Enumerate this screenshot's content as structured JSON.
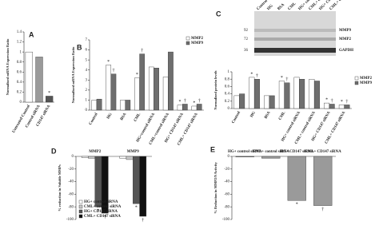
{
  "chart_data": [
    {
      "type": "bar",
      "panel": "A",
      "ylabel": "Normalized mRNA Expression Ratio",
      "categories": [
        "Untreated Control",
        "Control siRNA",
        "CD147 siRNA"
      ],
      "values": [
        1.0,
        0.9,
        0.12
      ],
      "colors": [
        "#ffffff",
        "#9a9a9a",
        "#555555"
      ],
      "annotations": [
        null,
        null,
        "*"
      ],
      "ylim": [
        0,
        1.4
      ],
      "yticks": [
        0,
        0.2,
        0.4,
        0.6,
        0.8,
        1,
        1.2,
        1.4
      ]
    },
    {
      "type": "bar",
      "panel": "B",
      "ylabel": "Normalized mRNA Expression Ratio",
      "categories": [
        "Control",
        "HG",
        "BSA",
        "CML",
        "HG+control siRNA",
        "CML+control siRNA",
        "HG+ CD147 siRNA",
        "CML+ CD147 siRNA"
      ],
      "series": [
        {
          "name": "MMP2",
          "color": "#ffffff",
          "values": [
            1,
            4.5,
            1,
            3.2,
            4.3,
            3.3,
            0.5,
            0.4
          ],
          "annotations": [
            null,
            "*",
            null,
            "*",
            null,
            null,
            "*",
            "*"
          ]
        },
        {
          "name": "MMP9",
          "color": "#6e6e6e",
          "values": [
            1.1,
            3.6,
            1,
            5.6,
            4.2,
            5.8,
            0.6,
            0.6
          ],
          "annotations": [
            null,
            "†",
            null,
            "†",
            null,
            null,
            "†",
            "†"
          ]
        }
      ],
      "ylim": [
        0,
        7
      ],
      "yticks": [
        0,
        1,
        2,
        3,
        4,
        5,
        6,
        7
      ],
      "legend": "top-right"
    },
    {
      "type": "bar",
      "panel": "C",
      "ylabel": "Normalized protein levels",
      "blot": {
        "bands": [
          "MMP9",
          "MMP2",
          "GAPDH"
        ],
        "markers": [
          "92",
          "72",
          "36"
        ]
      },
      "categories": [
        "Control",
        "HG",
        "BSA",
        "CML",
        "HG+ control siRNA",
        "CML+ control siRNA",
        "HG+ CD147 siRNA",
        "CML+ CD147 siRNA"
      ],
      "series": [
        {
          "name": "MMP2",
          "color": "#ffffff",
          "values": [
            0.35,
            0.85,
            0.35,
            0.75,
            0.85,
            0.8,
            0.15,
            0.1
          ],
          "annotations": [
            null,
            "*",
            null,
            "*",
            null,
            null,
            "*",
            "*"
          ]
        },
        {
          "name": "MMP9",
          "color": "#6e6e6e",
          "values": [
            0.4,
            0.8,
            0.35,
            0.7,
            0.8,
            0.75,
            0.12,
            0.1
          ],
          "annotations": [
            null,
            "†",
            null,
            "†",
            null,
            null,
            "†",
            "†"
          ]
        }
      ],
      "ylim": [
        0,
        1
      ],
      "yticks": [
        0,
        0.2,
        0.4,
        0.6,
        0.8,
        1
      ],
      "legend": "right"
    },
    {
      "type": "bar",
      "panel": "D",
      "ylabel": "% reduction in Soluble MMPs",
      "categories": [
        "MMP2",
        "MMP9"
      ],
      "xaxis_position": "top",
      "series": [
        {
          "name": "HG+ control siRNA",
          "color": "#ffffff",
          "values": [
            -2,
            -3
          ],
          "annotations": [
            null,
            null
          ]
        },
        {
          "name": "CML+ control siRNA",
          "color": "#c8c8c8",
          "values": [
            -3,
            -5
          ],
          "annotations": [
            null,
            null
          ]
        },
        {
          "name": "HG+ CD147 siRNA",
          "color": "#555555",
          "values": [
            -80,
            -75
          ],
          "annotations": [
            "*",
            "*"
          ]
        },
        {
          "name": "CML+ CD147 siRNA",
          "color": "#111111",
          "values": [
            -90,
            -95
          ],
          "annotations": [
            "†",
            "†"
          ]
        }
      ],
      "ylim": [
        -100,
        0
      ],
      "yticks": [
        0,
        -20,
        -40,
        -60,
        -80,
        -100
      ],
      "legend": "bottom-left"
    },
    {
      "type": "bar",
      "panel": "E",
      "ylabel": "% Reduction in MMP2/9 Activity",
      "categories": [
        "HG+ control siRNA",
        "CML+ control siRNA",
        "HG+ CD147 siRNA",
        "CML+ CD147 siRNA"
      ],
      "xaxis_position": "top",
      "values": [
        -1,
        -3,
        -70,
        -78
      ],
      "colors": [
        "#9a9a9a",
        "#9a9a9a",
        "#9a9a9a",
        "#9a9a9a"
      ],
      "annotations": [
        null,
        null,
        "*",
        "†"
      ],
      "ylim": [
        -100,
        0
      ],
      "yticks": [
        0,
        -20,
        -40,
        -60,
        -80,
        -100
      ]
    }
  ]
}
